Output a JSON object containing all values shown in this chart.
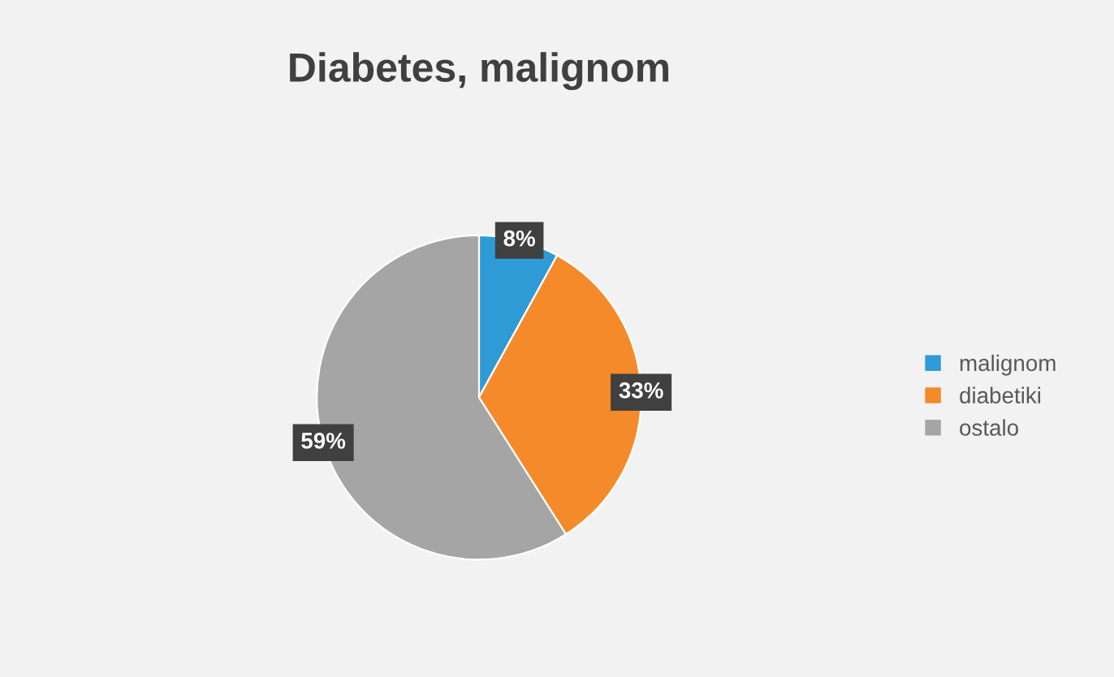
{
  "chart_data": {
    "type": "pie",
    "title": "Diabetes, malignom",
    "categories": [
      "malignom",
      "diabetiki",
      "ostalo"
    ],
    "values": [
      8,
      33,
      59
    ],
    "colors": [
      "#2e9bd6",
      "#f58a2a",
      "#a5a5a5"
    ],
    "value_labels": [
      "8%",
      "33%",
      "59%"
    ],
    "legend": "right"
  }
}
